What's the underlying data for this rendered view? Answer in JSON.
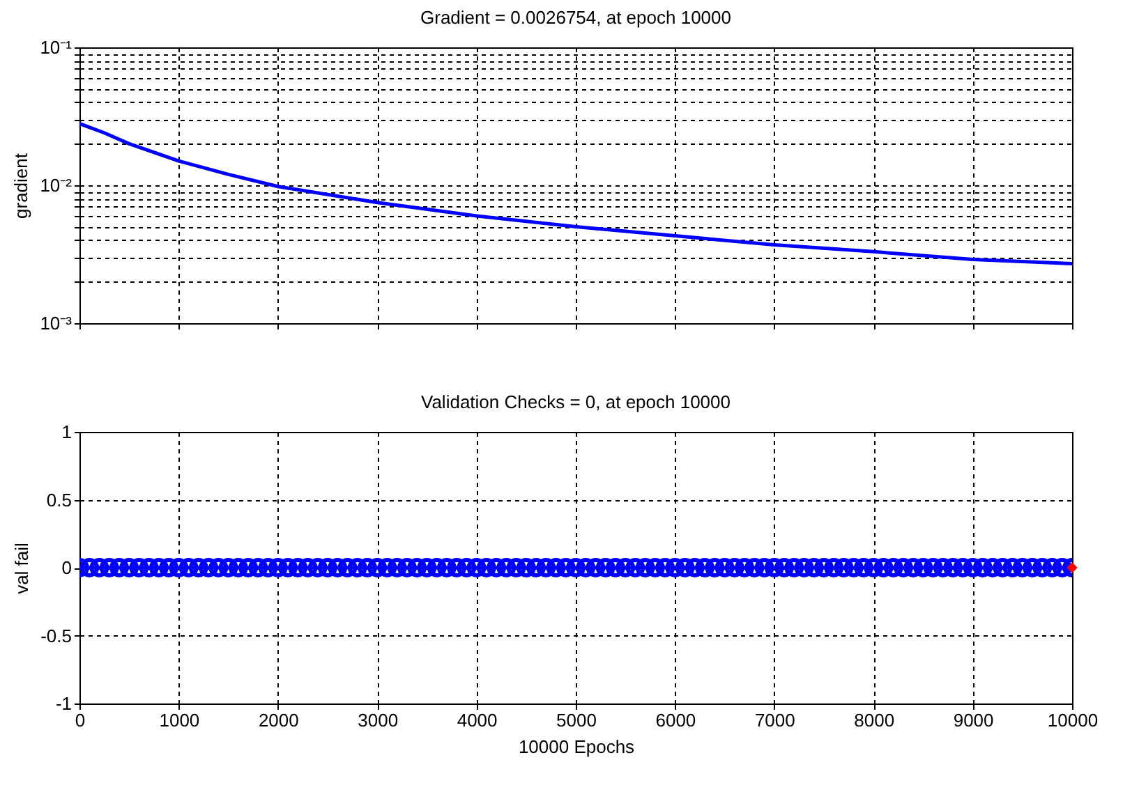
{
  "chart_data": [
    {
      "type": "line",
      "title": "Gradient = 0.0026754, at epoch 10000",
      "ylabel": "gradient",
      "log": "y",
      "grid": true,
      "tick_labels": "y",
      "xlim": [
        0,
        10000
      ],
      "xticks": [
        0,
        1000,
        2000,
        3000,
        4000,
        5000,
        6000,
        7000,
        8000,
        9000,
        10000
      ],
      "ylim": [
        0.001,
        0.1
      ],
      "yticks": [
        {
          "value": 0.001,
          "label": "10⁻³"
        },
        {
          "value": 0.002,
          "label": null
        },
        {
          "value": 0.003,
          "label": null
        },
        {
          "value": 0.004,
          "label": null
        },
        {
          "value": 0.005,
          "label": null
        },
        {
          "value": 0.006,
          "label": null
        },
        {
          "value": 0.007,
          "label": null
        },
        {
          "value": 0.008,
          "label": null
        },
        {
          "value": 0.009,
          "label": null
        },
        {
          "value": 0.01,
          "label": "10⁻²"
        },
        {
          "value": 0.02,
          "label": null
        },
        {
          "value": 0.03,
          "label": null
        },
        {
          "value": 0.04,
          "label": null
        },
        {
          "value": 0.05,
          "label": null
        },
        {
          "value": 0.06,
          "label": null
        },
        {
          "value": 0.07,
          "label": null
        },
        {
          "value": 0.08,
          "label": null
        },
        {
          "value": 0.09,
          "label": null
        },
        {
          "value": 0.1,
          "label": "10⁻¹"
        }
      ],
      "x": [
        0,
        250,
        500,
        1000,
        1500,
        2000,
        3000,
        4000,
        5000,
        6000,
        7000,
        8000,
        9000,
        10000
      ],
      "series": [
        {
          "color": "#0000ff",
          "values": [
            0.028,
            0.024,
            0.02,
            0.015,
            0.012,
            0.0098,
            0.0075,
            0.006,
            0.005,
            0.0043,
            0.0037,
            0.0033,
            0.0029,
            0.0027
          ]
        }
      ]
    },
    {
      "type": "line",
      "title": "Validation Checks = 0, at epoch 10000",
      "xlabel": "10000 Epochs",
      "ylabel": "val fail",
      "grid": true,
      "xlim": [
        0,
        10000
      ],
      "xticks": [
        0,
        1000,
        2000,
        3000,
        4000,
        5000,
        6000,
        7000,
        8000,
        9000,
        10000
      ],
      "ylim": [
        -1,
        1
      ],
      "yticks": [
        -1,
        -0.5,
        0,
        0.5,
        1
      ],
      "x": [
        0,
        100,
        200,
        300,
        400,
        500,
        600,
        700,
        800,
        900,
        1000,
        1100,
        1200,
        1300,
        1400,
        1500,
        1600,
        1700,
        1800,
        1900,
        2000,
        2100,
        2200,
        2300,
        2400,
        2500,
        2600,
        2700,
        2800,
        2900,
        3000,
        3100,
        3200,
        3300,
        3400,
        3500,
        3600,
        3700,
        3800,
        3900,
        4000,
        4100,
        4200,
        4300,
        4400,
        4500,
        4600,
        4700,
        4800,
        4900,
        5000,
        5100,
        5200,
        5300,
        5400,
        5500,
        5600,
        5700,
        5800,
        5900,
        6000,
        6100,
        6200,
        6300,
        6400,
        6500,
        6600,
        6700,
        6800,
        6900,
        7000,
        7100,
        7200,
        7300,
        7400,
        7500,
        7600,
        7700,
        7800,
        7900,
        8000,
        8100,
        8200,
        8300,
        8400,
        8500,
        8600,
        8700,
        8800,
        8900,
        9000,
        9100,
        9200,
        9300,
        9400,
        9500,
        9600,
        9700,
        9800,
        9900,
        10000
      ],
      "series": [
        {
          "color": "#0000ff",
          "marker": "circle",
          "values": [
            0,
            0,
            0,
            0,
            0,
            0,
            0,
            0,
            0,
            0,
            0,
            0,
            0,
            0,
            0,
            0,
            0,
            0,
            0,
            0,
            0,
            0,
            0,
            0,
            0,
            0,
            0,
            0,
            0,
            0,
            0,
            0,
            0,
            0,
            0,
            0,
            0,
            0,
            0,
            0,
            0,
            0,
            0,
            0,
            0,
            0,
            0,
            0,
            0,
            0,
            0,
            0,
            0,
            0,
            0,
            0,
            0,
            0,
            0,
            0,
            0,
            0,
            0,
            0,
            0,
            0,
            0,
            0,
            0,
            0,
            0,
            0,
            0,
            0,
            0,
            0,
            0,
            0,
            0,
            0,
            0,
            0,
            0,
            0,
            0,
            0,
            0,
            0,
            0,
            0,
            0,
            0,
            0,
            0,
            0,
            0,
            0,
            0,
            0,
            0,
            0
          ]
        },
        {
          "type": "scatter",
          "color": "#ff0000",
          "marker": "diamond",
          "x": [
            10000
          ],
          "values": [
            0
          ]
        }
      ]
    }
  ]
}
